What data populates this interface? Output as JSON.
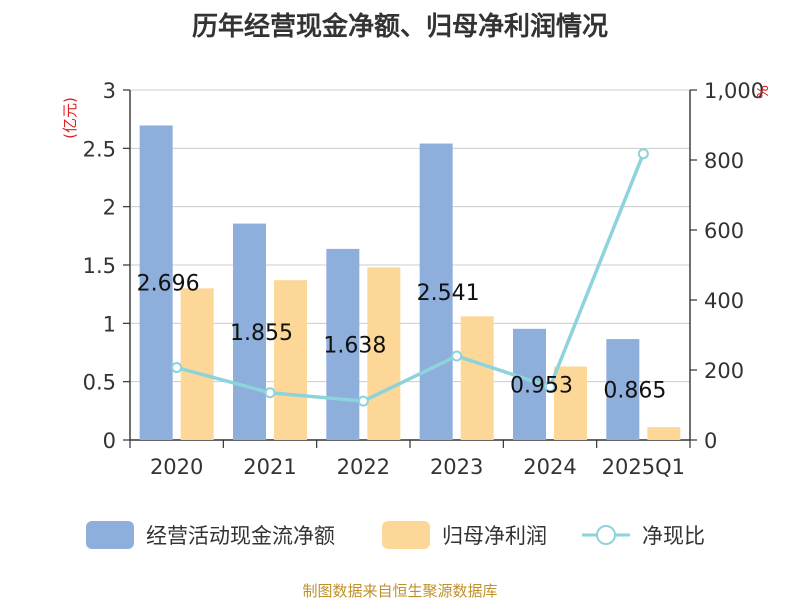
{
  "chart_data": {
    "type": "bar",
    "title": "历年经营现金净额、归母净利润情况",
    "categories": [
      "2020",
      "2021",
      "2022",
      "2023",
      "2024",
      "2025Q1"
    ],
    "series": [
      {
        "name": "经营活动现金流净额",
        "type": "bar",
        "axis": "left",
        "values": [
          2.696,
          1.855,
          1.638,
          2.541,
          0.953,
          0.865
        ],
        "color": "#8eaedb"
      },
      {
        "name": "归母净利润",
        "type": "bar",
        "axis": "left",
        "values": [
          1.3,
          1.37,
          1.48,
          1.06,
          0.63,
          0.11
        ],
        "color": "#fdd797"
      },
      {
        "name": "净现比",
        "type": "line",
        "axis": "right",
        "values": [
          207,
          135,
          111,
          240,
          152,
          818
        ],
        "color": "#8dd3dc"
      }
    ],
    "data_labels": [
      "2.696",
      "1.855",
      "1.638",
      "2.541",
      "0.953",
      "0.865"
    ],
    "left_axis": {
      "label": "(亿元)",
      "ylim": [
        0,
        3
      ],
      "ticks": [
        "0",
        "0.5",
        "1",
        "1.5",
        "2",
        "2.5",
        "3"
      ]
    },
    "right_axis": {
      "label": "%",
      "ylim": [
        0,
        1000
      ],
      "ticks": [
        "0",
        "200",
        "400",
        "600",
        "800",
        "1,000"
      ]
    },
    "grid": true,
    "legend_position": "bottom",
    "source_note": "制图数据来自恒生聚源数据库"
  }
}
